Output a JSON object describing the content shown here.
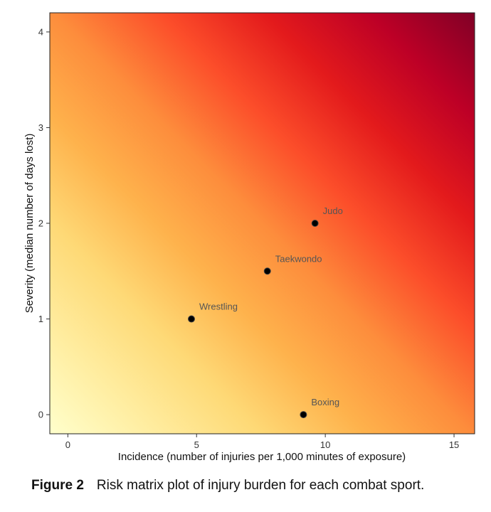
{
  "chart_data": {
    "type": "scatter",
    "xlabel": "Incidence (number of injuries per 1,000 minutes of exposure)",
    "ylabel": "Severity (median number of days lost)",
    "xlim": [
      -0.7,
      15.8
    ],
    "ylim": [
      -0.2,
      4.2
    ],
    "xticks": [
      0,
      5,
      10,
      15
    ],
    "yticks": [
      0,
      1,
      2,
      3,
      4
    ],
    "background": "risk gradient: pale yellow (low incidence, low severity) to dark red (high incidence, high severity)",
    "gradient_colors": [
      "#ffffcc",
      "#ffeda0",
      "#fed976",
      "#feb24c",
      "#fd8d3c",
      "#fc4e2a",
      "#e31a1c",
      "#bd0026",
      "#800026"
    ],
    "point_color": "#000000",
    "label_color": "#555555",
    "points": [
      {
        "label": "Judo",
        "x": 9.6,
        "y": 2.0
      },
      {
        "label": "Taekwondo",
        "x": 7.75,
        "y": 1.5
      },
      {
        "label": "Wrestling",
        "x": 4.8,
        "y": 1.0
      },
      {
        "label": "Boxing",
        "x": 9.15,
        "y": 0.0
      }
    ]
  },
  "caption": {
    "number": "Figure 2",
    "text": "Risk matrix plot of injury burden for each combat sport."
  }
}
